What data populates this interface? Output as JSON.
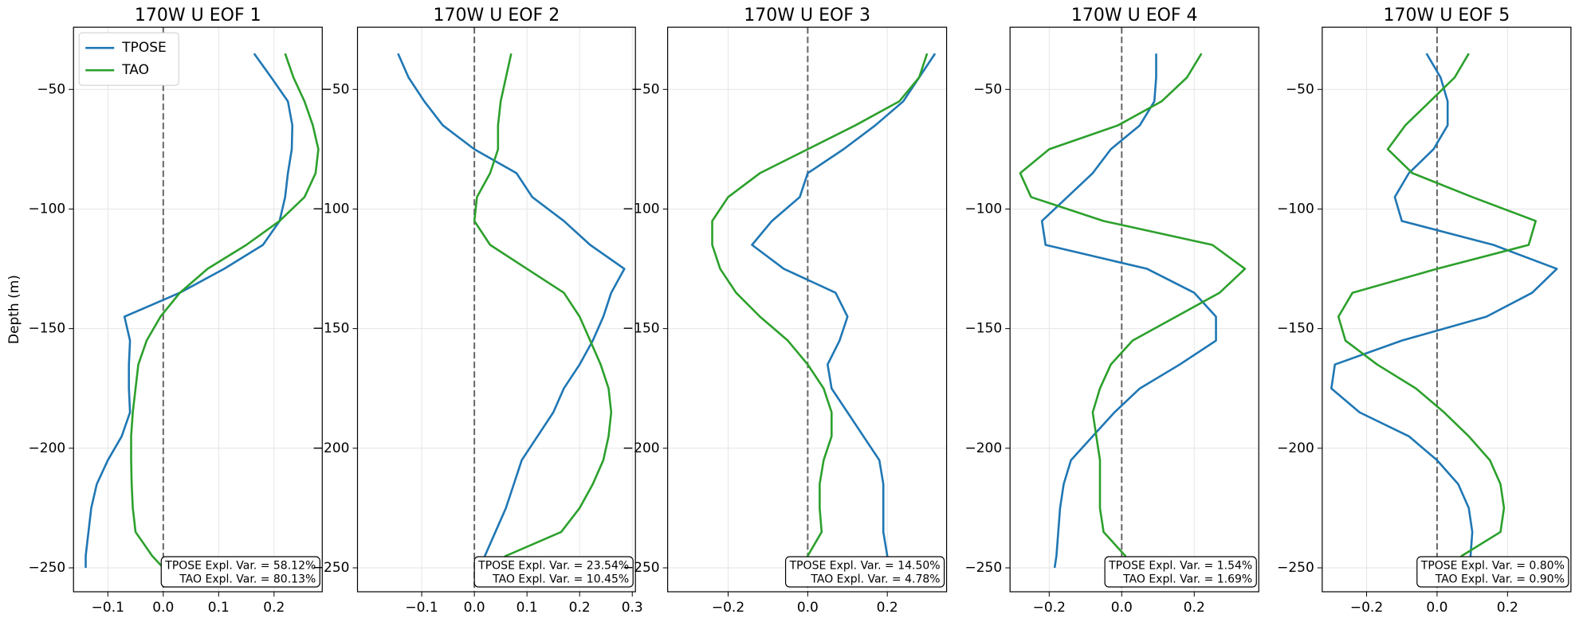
{
  "chart_data": [
    {
      "type": "line",
      "title": "170W U EOF 1",
      "y_label": "Depth (m)",
      "legend": "upper left",
      "grid": true,
      "zero_line": true,
      "xlim": [
        -0.162,
        0.287
      ],
      "ylim": [
        -260,
        -24
      ],
      "xticks": [
        {
          "value": -0.1,
          "label": "−0.1"
        },
        {
          "value": 0,
          "label": "0.0"
        },
        {
          "value": 0.1,
          "label": "0.1"
        },
        {
          "value": 0.2,
          "label": "0.2"
        }
      ],
      "yticks": [
        {
          "value": -250,
          "label": "−250"
        },
        {
          "value": -200,
          "label": "−200"
        },
        {
          "value": -150,
          "label": "−150"
        },
        {
          "value": -100,
          "label": "−100"
        },
        {
          "value": -50,
          "label": "−50"
        }
      ],
      "y": [
        -35,
        -45,
        -55,
        -65,
        -75,
        -85,
        -95,
        -105,
        -115,
        -125,
        -135,
        -145,
        -155,
        -165,
        -175,
        -185,
        -195,
        -205,
        -215,
        -225,
        -235,
        -245,
        -250
      ],
      "series": [
        {
          "name": "TPOSE",
          "color": "#1f77b4",
          "values": [
            0.164,
            0.195,
            0.225,
            0.233,
            0.232,
            0.225,
            0.22,
            0.21,
            0.18,
            0.11,
            0.03,
            -0.07,
            -0.06,
            -0.062,
            -0.062,
            -0.06,
            -0.075,
            -0.1,
            -0.12,
            -0.13,
            -0.135,
            -0.14,
            -0.14
          ]
        },
        {
          "name": "TAO",
          "color": "#2ca02c",
          "values": [
            0.22,
            0.235,
            0.255,
            0.27,
            0.28,
            0.275,
            0.255,
            0.21,
            0.15,
            0.08,
            0.03,
            -0.005,
            -0.03,
            -0.045,
            -0.05,
            -0.055,
            -0.058,
            -0.058,
            -0.057,
            -0.055,
            -0.05,
            -0.02,
            0.0
          ]
        }
      ],
      "annotations": [
        "TPOSE Expl. Var. = 58.12%",
        "TAO Expl. Var. = 80.13%"
      ]
    },
    {
      "type": "line",
      "title": "170W U EOF 2",
      "grid": true,
      "zero_line": true,
      "xlim": [
        -0.222,
        0.306
      ],
      "ylim": [
        -260,
        -24
      ],
      "xticks": [
        {
          "value": -0.1,
          "label": "−0.1"
        },
        {
          "value": 0,
          "label": "0.0"
        },
        {
          "value": 0.1,
          "label": "0.1"
        },
        {
          "value": 0.2,
          "label": "0.2"
        },
        {
          "value": 0.3,
          "label": "0.3"
        }
      ],
      "yticks": [
        {
          "value": -250,
          "label": "−250"
        },
        {
          "value": -200,
          "label": "−200"
        },
        {
          "value": -150,
          "label": "−150"
        },
        {
          "value": -100,
          "label": "−100"
        },
        {
          "value": -50,
          "label": "−50"
        }
      ],
      "y": [
        -35,
        -45,
        -55,
        -65,
        -75,
        -85,
        -95,
        -105,
        -115,
        -125,
        -135,
        -145,
        -155,
        -165,
        -175,
        -185,
        -195,
        -205,
        -215,
        -225,
        -235,
        -245,
        -250
      ],
      "series": [
        {
          "color": "#1f77b4",
          "values": [
            -0.145,
            -0.125,
            -0.095,
            -0.06,
            0.0,
            0.08,
            0.11,
            0.17,
            0.22,
            0.285,
            0.26,
            0.245,
            0.225,
            0.2,
            0.17,
            0.15,
            0.12,
            0.09,
            0.075,
            0.06,
            0.04,
            0.02,
            0.01
          ]
        },
        {
          "color": "#2ca02c",
          "values": [
            0.07,
            0.06,
            0.05,
            0.045,
            0.045,
            0.03,
            0.005,
            0.0,
            0.03,
            0.1,
            0.17,
            0.2,
            0.22,
            0.24,
            0.255,
            0.26,
            0.255,
            0.245,
            0.225,
            0.2,
            0.165,
            0.06,
            0.03
          ]
        }
      ],
      "annotations": [
        "TPOSE Expl. Var. = 23.54%",
        "TAO Expl. Var. = 10.45%"
      ]
    },
    {
      "type": "line",
      "title": "170W U EOF 3",
      "grid": true,
      "zero_line": true,
      "xlim": [
        -0.352,
        0.349
      ],
      "ylim": [
        -260,
        -24
      ],
      "xticks": [
        {
          "value": -0.2,
          "label": "−0.2"
        },
        {
          "value": 0,
          "label": "0.0"
        },
        {
          "value": 0.2,
          "label": "0.2"
        }
      ],
      "yticks": [
        {
          "value": -250,
          "label": "−250"
        },
        {
          "value": -200,
          "label": "−200"
        },
        {
          "value": -150,
          "label": "−150"
        },
        {
          "value": -100,
          "label": "−100"
        },
        {
          "value": -50,
          "label": "−50"
        }
      ],
      "y": [
        -35,
        -45,
        -55,
        -65,
        -75,
        -85,
        -95,
        -105,
        -115,
        -125,
        -135,
        -145,
        -155,
        -165,
        -175,
        -185,
        -195,
        -205,
        -215,
        -225,
        -235,
        -245,
        -250
      ],
      "series": [
        {
          "color": "#1f77b4",
          "values": [
            0.32,
            0.28,
            0.24,
            0.17,
            0.09,
            0.0,
            -0.02,
            -0.09,
            -0.14,
            -0.06,
            0.07,
            0.1,
            0.08,
            0.05,
            0.06,
            0.1,
            0.14,
            0.18,
            0.19,
            0.19,
            0.19,
            0.2,
            0.2
          ]
        },
        {
          "color": "#2ca02c",
          "values": [
            0.3,
            0.28,
            0.23,
            0.12,
            0.0,
            -0.12,
            -0.2,
            -0.24,
            -0.24,
            -0.22,
            -0.18,
            -0.12,
            -0.05,
            0.0,
            0.04,
            0.06,
            0.06,
            0.04,
            0.03,
            0.03,
            0.035,
            0.0,
            0.0
          ]
        }
      ],
      "annotations": [
        "TPOSE Expl. Var. = 14.50%",
        "TAO Expl. Var. = 4.78%"
      ]
    },
    {
      "type": "line",
      "title": "170W U EOF 4",
      "grid": true,
      "zero_line": true,
      "xlim": [
        -0.308,
        0.378
      ],
      "ylim": [
        -260,
        -24
      ],
      "xticks": [
        {
          "value": -0.2,
          "label": "−0.2"
        },
        {
          "value": 0,
          "label": "0.0"
        },
        {
          "value": 0.2,
          "label": "0.2"
        }
      ],
      "yticks": [
        {
          "value": -250,
          "label": "−250"
        },
        {
          "value": -200,
          "label": "−200"
        },
        {
          "value": -150,
          "label": "−150"
        },
        {
          "value": -100,
          "label": "−100"
        },
        {
          "value": -50,
          "label": "−50"
        }
      ],
      "y": [
        -35,
        -45,
        -55,
        -65,
        -75,
        -85,
        -95,
        -105,
        -115,
        -125,
        -135,
        -145,
        -155,
        -165,
        -175,
        -185,
        -195,
        -205,
        -215,
        -225,
        -235,
        -245,
        -250
      ],
      "series": [
        {
          "color": "#1f77b4",
          "values": [
            0.095,
            0.095,
            0.09,
            0.05,
            -0.03,
            -0.08,
            -0.15,
            -0.22,
            -0.21,
            0.07,
            0.2,
            0.26,
            0.26,
            0.16,
            0.05,
            -0.02,
            -0.08,
            -0.14,
            -0.16,
            -0.17,
            -0.175,
            -0.18,
            -0.185
          ]
        },
        {
          "color": "#2ca02c",
          "values": [
            0.22,
            0.18,
            0.11,
            -0.01,
            -0.2,
            -0.28,
            -0.25,
            -0.05,
            0.25,
            0.34,
            0.27,
            0.15,
            0.03,
            -0.03,
            -0.06,
            -0.08,
            -0.07,
            -0.06,
            -0.06,
            -0.06,
            -0.05,
            0.01,
            0.02
          ]
        }
      ],
      "annotations": [
        "TPOSE Expl. Var. = 1.54%",
        "TAO Expl. Var. = 1.69%"
      ]
    },
    {
      "type": "line",
      "title": "170W U EOF 5",
      "grid": true,
      "zero_line": true,
      "xlim": [
        -0.326,
        0.38
      ],
      "ylim": [
        -260,
        -24
      ],
      "xticks": [
        {
          "value": -0.2,
          "label": "−0.2"
        },
        {
          "value": 0,
          "label": "0.0"
        },
        {
          "value": 0.2,
          "label": "0.2"
        }
      ],
      "yticks": [
        {
          "value": -250,
          "label": "−250"
        },
        {
          "value": -200,
          "label": "−200"
        },
        {
          "value": -150,
          "label": "−150"
        },
        {
          "value": -100,
          "label": "−100"
        },
        {
          "value": -50,
          "label": "−50"
        }
      ],
      "y": [
        -35,
        -45,
        -55,
        -65,
        -75,
        -85,
        -95,
        -105,
        -115,
        -125,
        -135,
        -145,
        -155,
        -165,
        -175,
        -185,
        -195,
        -205,
        -215,
        -225,
        -235,
        -245,
        -250
      ],
      "series": [
        {
          "color": "#1f77b4",
          "values": [
            -0.03,
            0.01,
            0.03,
            0.03,
            -0.01,
            -0.08,
            -0.12,
            -0.1,
            0.16,
            0.34,
            0.27,
            0.14,
            -0.1,
            -0.29,
            -0.3,
            -0.22,
            -0.08,
            0.0,
            0.06,
            0.09,
            0.1,
            0.095,
            0.095
          ]
        },
        {
          "color": "#2ca02c",
          "values": [
            0.09,
            0.05,
            -0.02,
            -0.09,
            -0.14,
            -0.07,
            0.1,
            0.28,
            0.26,
            0.0,
            -0.24,
            -0.28,
            -0.26,
            -0.17,
            -0.06,
            0.02,
            0.09,
            0.15,
            0.18,
            0.19,
            0.18,
            0.07,
            0.05
          ]
        }
      ],
      "annotations": [
        "TPOSE Expl. Var. = 0.80%",
        "TAO Expl. Var. = 0.90%"
      ]
    }
  ]
}
